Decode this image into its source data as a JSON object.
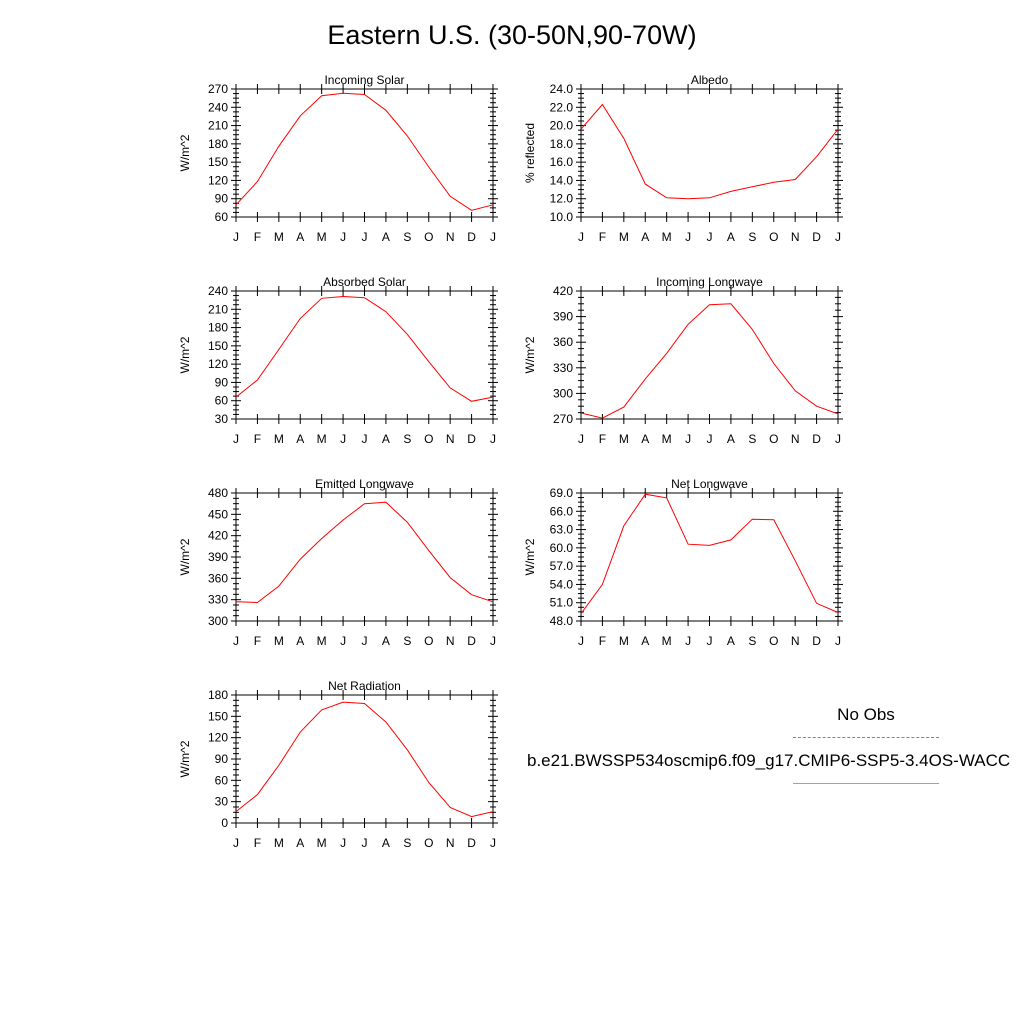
{
  "title": "Eastern U.S. (30-50N,90-70W)",
  "months": [
    "J",
    "F",
    "M",
    "A",
    "M",
    "J",
    "J",
    "A",
    "S",
    "O",
    "N",
    "D",
    "J"
  ],
  "legend": {
    "obs_label": "No Obs",
    "case_label": "b.e21.BWSSP534oscmip6.f09_g17.CMIP6-SSP5-3.4OS-WACC",
    "obs_color": "#7777dd",
    "case_color": "#ff0000"
  },
  "chart_data": [
    {
      "type": "line",
      "title": "Incoming Solar",
      "ylabel": "W/m^2",
      "ylim": [
        60,
        270
      ],
      "yticks": [
        60,
        90,
        120,
        150,
        180,
        210,
        240,
        270
      ],
      "ytick_labels": [
        "60",
        "90",
        "120",
        "150",
        "180",
        "210",
        "240",
        "270"
      ],
      "x": [
        "J",
        "F",
        "M",
        "A",
        "M",
        "J",
        "J",
        "A",
        "S",
        "O",
        "N",
        "D",
        "J"
      ],
      "series": [
        {
          "values": [
            80,
            118,
            176,
            226,
            259,
            263,
            261,
            235,
            193,
            142,
            94,
            71,
            80
          ]
        }
      ]
    },
    {
      "type": "line",
      "title": "Albedo",
      "ylabel": "% reflected",
      "ylim": [
        10,
        24
      ],
      "yticks": [
        10,
        12,
        14,
        16,
        18,
        20,
        22,
        24
      ],
      "ytick_labels": [
        "10.0",
        "12.0",
        "14.0",
        "16.0",
        "18.0",
        "20.0",
        "22.0",
        "24.0"
      ],
      "x": [
        "J",
        "F",
        "M",
        "A",
        "M",
        "J",
        "J",
        "A",
        "S",
        "O",
        "N",
        "D",
        "J"
      ],
      "series": [
        {
          "values": [
            19.6,
            22.3,
            18.6,
            13.6,
            12.1,
            12.0,
            12.1,
            12.8,
            13.3,
            13.8,
            14.1,
            16.6,
            19.6
          ]
        }
      ]
    },
    {
      "type": "line",
      "title": "Absorbed Solar",
      "ylabel": "W/m^2",
      "ylim": [
        30,
        240
      ],
      "yticks": [
        30,
        60,
        90,
        120,
        150,
        180,
        210,
        240
      ],
      "ytick_labels": [
        "30",
        "60",
        "90",
        "120",
        "150",
        "180",
        "210",
        "240"
      ],
      "x": [
        "J",
        "F",
        "M",
        "A",
        "M",
        "J",
        "J",
        "A",
        "S",
        "O",
        "N",
        "D",
        "J"
      ],
      "series": [
        {
          "values": [
            66,
            94,
            144,
            195,
            228,
            231,
            229,
            206,
            169,
            124,
            81,
            59,
            66
          ]
        }
      ]
    },
    {
      "type": "line",
      "title": "Incoming Longwave",
      "ylabel": "W/m^2",
      "ylim": [
        270,
        420
      ],
      "yticks": [
        270,
        300,
        330,
        360,
        390,
        420
      ],
      "ytick_labels": [
        "270",
        "300",
        "330",
        "360",
        "390",
        "420"
      ],
      "x": [
        "J",
        "F",
        "M",
        "A",
        "M",
        "J",
        "J",
        "A",
        "S",
        "O",
        "N",
        "D",
        "J"
      ],
      "series": [
        {
          "values": [
            277,
            271,
            284,
            317,
            347,
            381,
            404,
            405,
            375,
            335,
            303,
            285,
            276
          ]
        }
      ]
    },
    {
      "type": "line",
      "title": "Emitted Longwave",
      "ylabel": "W/m^2",
      "ylim": [
        300,
        480
      ],
      "yticks": [
        300,
        330,
        360,
        390,
        420,
        450,
        480
      ],
      "ytick_labels": [
        "300",
        "330",
        "360",
        "390",
        "420",
        "450",
        "480"
      ],
      "x": [
        "J",
        "F",
        "M",
        "A",
        "M",
        "J",
        "J",
        "A",
        "S",
        "O",
        "N",
        "D",
        "J"
      ],
      "series": [
        {
          "values": [
            327,
            326,
            349,
            387,
            416,
            442,
            465,
            467,
            439,
            399,
            361,
            337,
            327
          ]
        }
      ]
    },
    {
      "type": "line",
      "title": "Net Longwave",
      "ylabel": "W/m^2",
      "ylim": [
        48,
        69
      ],
      "yticks": [
        48,
        51,
        54,
        57,
        60,
        63,
        66,
        69
      ],
      "ytick_labels": [
        "48.0",
        "51.0",
        "54.0",
        "57.0",
        "60.0",
        "63.0",
        "66.0",
        "69.0"
      ],
      "x": [
        "J",
        "F",
        "M",
        "A",
        "M",
        "J",
        "J",
        "A",
        "S",
        "O",
        "N",
        "D",
        "J"
      ],
      "series": [
        {
          "values": [
            49.2,
            54.0,
            63.6,
            68.8,
            68.2,
            60.6,
            60.4,
            61.3,
            64.7,
            64.6,
            57.9,
            50.9,
            49.4
          ]
        }
      ]
    },
    {
      "type": "line",
      "title": "Net Radiation",
      "ylabel": "W/m^2",
      "ylim": [
        0,
        180
      ],
      "yticks": [
        0,
        30,
        60,
        90,
        120,
        150,
        180
      ],
      "ytick_labels": [
        "0",
        "30",
        "60",
        "90",
        "120",
        "150",
        "180"
      ],
      "x": [
        "J",
        "F",
        "M",
        "A",
        "M",
        "J",
        "J",
        "A",
        "S",
        "O",
        "N",
        "D",
        "J"
      ],
      "series": [
        {
          "values": [
            16,
            40,
            81,
            128,
            159,
            170,
            168,
            142,
            103,
            57,
            22,
            9,
            16
          ]
        }
      ]
    }
  ]
}
